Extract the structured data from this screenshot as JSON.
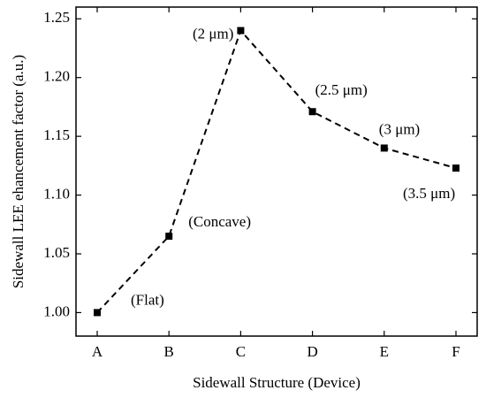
{
  "chart_data": {
    "type": "line",
    "x_label": "Sidewall Structure (Device)",
    "y_label": "Sidewall LEE ehancement factor (a.u.)",
    "categories": [
      "A",
      "B",
      "C",
      "D",
      "E",
      "F"
    ],
    "values": [
      1.0,
      1.065,
      1.24,
      1.171,
      1.14,
      1.123
    ],
    "annotations": [
      "(Flat)",
      "(Concave)",
      "(2 μm)",
      "(2.5 μm)",
      "(3 μm)",
      "(3.5 μm)"
    ],
    "color": "#000000",
    "ylim": [
      0.98,
      1.26
    ],
    "yticks": [
      {
        "value": 1.0,
        "label": "1.00"
      },
      {
        "value": 1.05,
        "label": "1.05"
      },
      {
        "value": 1.1,
        "label": "1.10"
      },
      {
        "value": 1.15,
        "label": "1.15"
      },
      {
        "value": 1.2,
        "label": "1.20"
      },
      {
        "value": 1.25,
        "label": "1.25"
      }
    ]
  }
}
